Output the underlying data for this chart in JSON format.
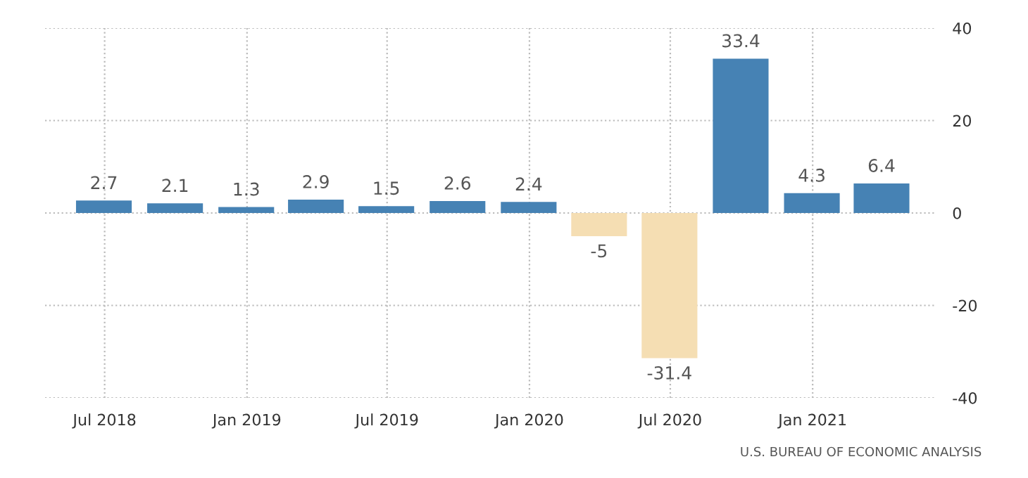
{
  "chart_data": {
    "type": "bar",
    "x": [
      "2018-06-30",
      "2018-09-30",
      "2018-12-31",
      "2019-03-31",
      "2019-06-30",
      "2019-09-30",
      "2019-12-31",
      "2020-03-31",
      "2020-06-30",
      "2020-09-30",
      "2020-12-31",
      "2021-03-31"
    ],
    "values": [
      2.7,
      2.1,
      1.3,
      2.9,
      1.5,
      2.6,
      2.4,
      -5,
      -31.4,
      33.4,
      4.3,
      6.4
    ],
    "colors": [
      "#4682b4",
      "#4682b4",
      "#4682b4",
      "#4682b4",
      "#4682b4",
      "#4682b4",
      "#4682b4",
      "#f5deb3",
      "#f5deb3",
      "#4682b4",
      "#4682b4",
      "#4682b4"
    ],
    "data_labels": true,
    "xlim": [
      "2018-04-15",
      "2021-06-10"
    ],
    "xticks": [
      {
        "value": "2018-07-01",
        "label": "Jul 2018"
      },
      {
        "value": "2019-01-01",
        "label": "Jan 2019"
      },
      {
        "value": "2019-07-01",
        "label": "Jul 2019"
      },
      {
        "value": "2020-01-01",
        "label": "Jan 2020"
      },
      {
        "value": "2020-07-01",
        "label": "Jul 2020"
      },
      {
        "value": "2021-01-01",
        "label": "Jan 2021"
      }
    ],
    "ylim": [
      -40,
      40
    ],
    "yticks": [
      -40,
      -20,
      0,
      20,
      40
    ],
    "grid": true,
    "annotations": [
      "U.S. BUREAU OF ECONOMIC ANALYSIS"
    ]
  }
}
